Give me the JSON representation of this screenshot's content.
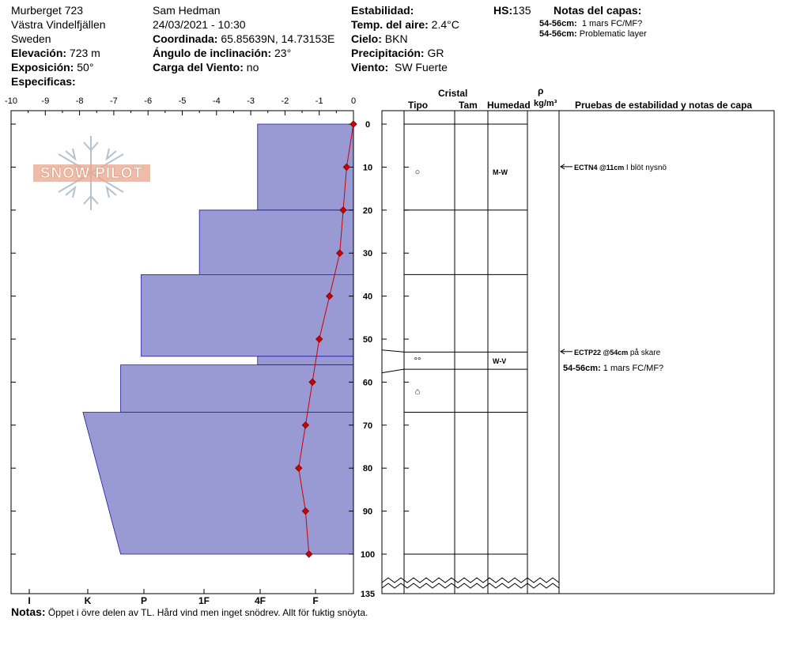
{
  "header": {
    "site": "Murberget 723",
    "region": "Västra Vindelfjällen",
    "country": "Sweden",
    "elevation_label": "Elevación:",
    "elevation_value": "723 m",
    "aspect_label": "Exposición:",
    "aspect_value": "50°",
    "specifics_label": "Especificas:",
    "observer": "Sam Hedman",
    "datetime": "24/03/2021 - 10:30",
    "coords_label": "Coordinada:",
    "coords_value": "65.85639N, 14.73153E",
    "slope_label": "Ángulo de inclinación:",
    "slope_value": "23°",
    "windload_label": "Carga del Viento:",
    "windload_value": "no",
    "stability_label": "Estabilidad:",
    "air_temp_label": "Temp. del aire:",
    "air_temp_value": "2.4°C",
    "sky_label": "Cielo:",
    "sky_value": "BKN",
    "precip_label": "Precipitación:",
    "precip_value": "GR",
    "wind_label": "Viento:",
    "wind_value": "SW Fuerte",
    "hs_label": "HS:",
    "hs_value": "135",
    "layer_notes_label": "Notas del capas:",
    "layer_notes": [
      {
        "range": "54-56cm:",
        "text": "1 mars FC/MF?"
      },
      {
        "range": "54-56cm:",
        "text": "Problematic layer"
      }
    ]
  },
  "logo": {
    "text": "SNOW PILOT"
  },
  "columns": {
    "crystal": "Cristal",
    "type": "Tipo",
    "size": "Tam",
    "moisture": "Humedad",
    "rho": "ρ",
    "density_unit": "kg/m³",
    "tests": "Pruebas de estabilidad y notas de capa"
  },
  "notes": {
    "label": "Notas:",
    "text": "Öppet i övre delen av TL. Hård vind men inget snödrev. Allt för fuktig snöyta."
  },
  "chart_data": {
    "type": "area",
    "temp_axis": {
      "ticks": [
        -10,
        -9,
        -8,
        -7,
        -6,
        -5,
        -4,
        -3,
        -2,
        -1,
        0
      ],
      "range": [
        -10,
        0
      ]
    },
    "depth_axis": {
      "ticks": [
        0,
        10,
        20,
        30,
        40,
        50,
        60,
        70,
        80,
        90,
        100
      ],
      "range": [
        0,
        110
      ],
      "bottom_label": "135"
    },
    "hardness_axis": {
      "labels": [
        "I",
        "K",
        "P",
        "1F",
        "4F",
        "F"
      ]
    },
    "hardness_profile": [
      {
        "top": 0,
        "bottom": 20,
        "hardness": "4F"
      },
      {
        "top": 20,
        "bottom": 35,
        "hardness": "1F-"
      },
      {
        "top": 35,
        "bottom": 54,
        "hardness": "P+"
      },
      {
        "top": 54,
        "bottom": 56,
        "hardness": "4F"
      },
      {
        "top": 56,
        "bottom": 67,
        "hardness": "P"
      },
      {
        "top": 67,
        "bottom": 100,
        "hardness_top": "K+",
        "hardness_bottom": "P-"
      }
    ],
    "hardness_values": [
      {
        "top": 0,
        "bottom": 20,
        "value": 2.8
      },
      {
        "top": 20,
        "bottom": 35,
        "value": 4.5
      },
      {
        "top": 35,
        "bottom": 54,
        "value": 6.2
      },
      {
        "top": 54,
        "bottom": 56,
        "value": 2.8
      },
      {
        "top": 56,
        "bottom": 67,
        "value": 6.8
      },
      {
        "top": 67,
        "bottom": 100,
        "value_top": 7.9,
        "value_bottom": 6.8
      }
    ],
    "temperature_profile": [
      {
        "depth": 0,
        "temp": 0.0
      },
      {
        "depth": 10,
        "temp": -0.2
      },
      {
        "depth": 20,
        "temp": -0.3
      },
      {
        "depth": 30,
        "temp": -0.4
      },
      {
        "depth": 40,
        "temp": -0.7
      },
      {
        "depth": 50,
        "temp": -1.0
      },
      {
        "depth": 60,
        "temp": -1.2
      },
      {
        "depth": 70,
        "temp": -1.4
      },
      {
        "depth": 80,
        "temp": -1.6
      },
      {
        "depth": 90,
        "temp": -1.4
      },
      {
        "depth": 100,
        "temp": -1.3
      }
    ],
    "layer_boundaries": [
      0,
      20,
      35,
      54,
      56,
      67,
      100
    ],
    "layer_details": [
      {
        "depth": 11,
        "crystal_symbol": "○",
        "moisture": "M-W"
      },
      {
        "depth": 55,
        "crystal_symbol": "°°",
        "moisture": "W-V"
      },
      {
        "depth": 62,
        "crystal_symbol": "⌂",
        "moisture": ""
      }
    ],
    "stability_tests": [
      {
        "depth": 11,
        "code": "ECTN4 @11cm",
        "note": "I blöt nysnö"
      },
      {
        "depth": 54,
        "code": "ECTP22 @54cm",
        "note": "på skare",
        "extra_range": "54-56cm:",
        "extra_text": "1 mars FC/MF?"
      }
    ],
    "colors": {
      "hardness_fill": "#9999d4",
      "hardness_stroke": "#1a1aa0",
      "temp_line": "#cc0000"
    }
  }
}
